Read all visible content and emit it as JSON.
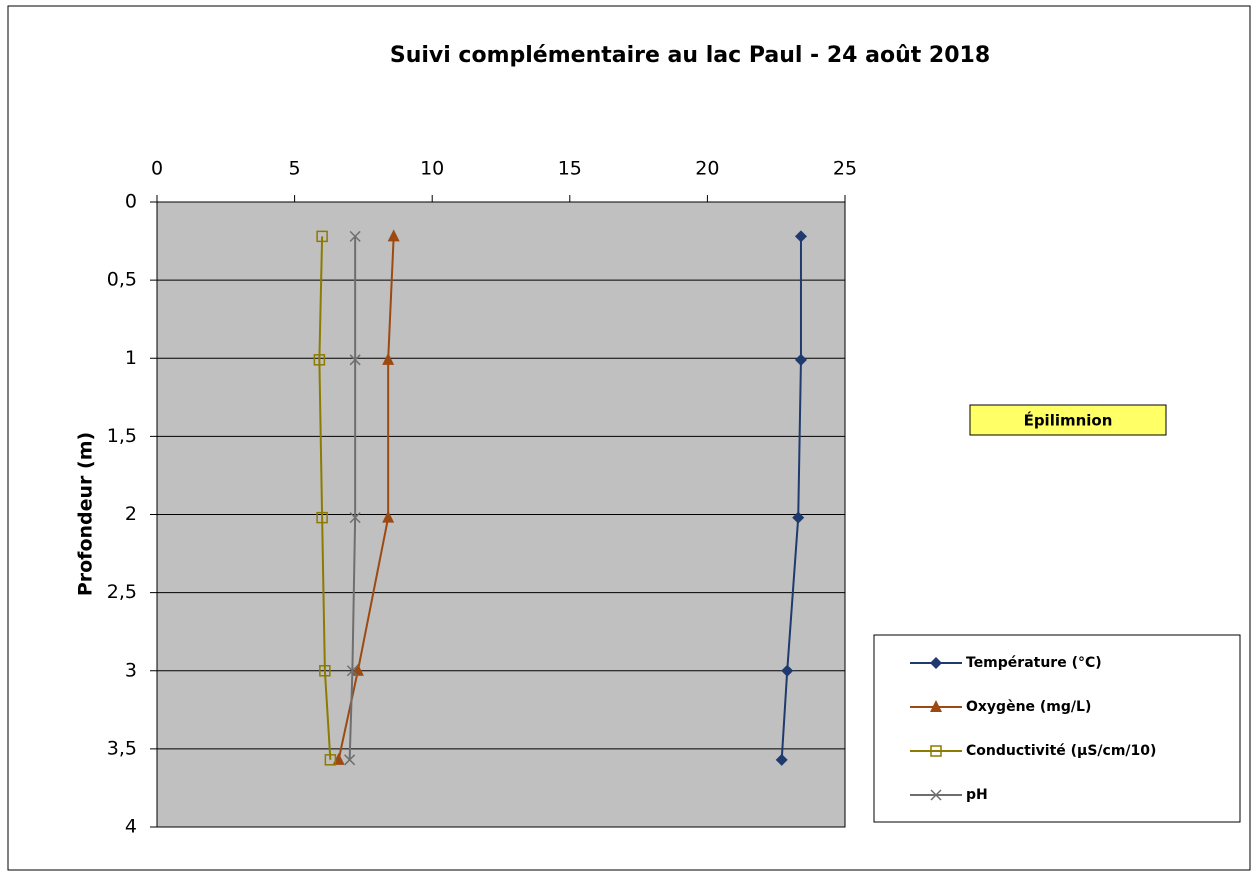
{
  "chart_data": {
    "type": "line",
    "title": "Suivi complémentaire au lac Paul - 24 août 2018",
    "y_label": "Profondeur (m)",
    "annotation": "Épilimnion",
    "depth": [
      0.22,
      1.01,
      2.02,
      3.0,
      3.57
    ],
    "series": [
      {
        "name": "Température (°C)",
        "color": "#1f3a6e",
        "marker": "diamond",
        "values": [
          23.4,
          23.4,
          23.3,
          22.9,
          22.7
        ]
      },
      {
        "name": "Oxygène (mg/L)",
        "color": "#9c4a12",
        "marker": "triangle",
        "values": [
          8.6,
          8.4,
          8.4,
          7.3,
          6.6
        ]
      },
      {
        "name": "Conductivité (µS/cm/10)",
        "color": "#8c7b00",
        "marker": "square",
        "values": [
          6.0,
          5.9,
          6.0,
          6.1,
          6.3
        ]
      },
      {
        "name": "pH",
        "color": "#6e6e6e",
        "marker": "x",
        "values": [
          7.2,
          7.2,
          7.2,
          7.1,
          7.0
        ]
      }
    ],
    "xlim": [
      0,
      25
    ],
    "xticks": [
      0,
      5,
      10,
      15,
      20,
      25
    ],
    "ylim": [
      0,
      4
    ],
    "y_inverted": true,
    "yticks": [
      0,
      {
        "value": 0.5,
        "label": "0,5"
      },
      1,
      {
        "value": 1.5,
        "label": "1,5"
      },
      2,
      {
        "value": 2.5,
        "label": "2,5"
      },
      3,
      {
        "value": 3.5,
        "label": "3,5"
      },
      4
    ],
    "grid": true,
    "plot_background": "#c0c0c0",
    "legend": "lower right"
  }
}
